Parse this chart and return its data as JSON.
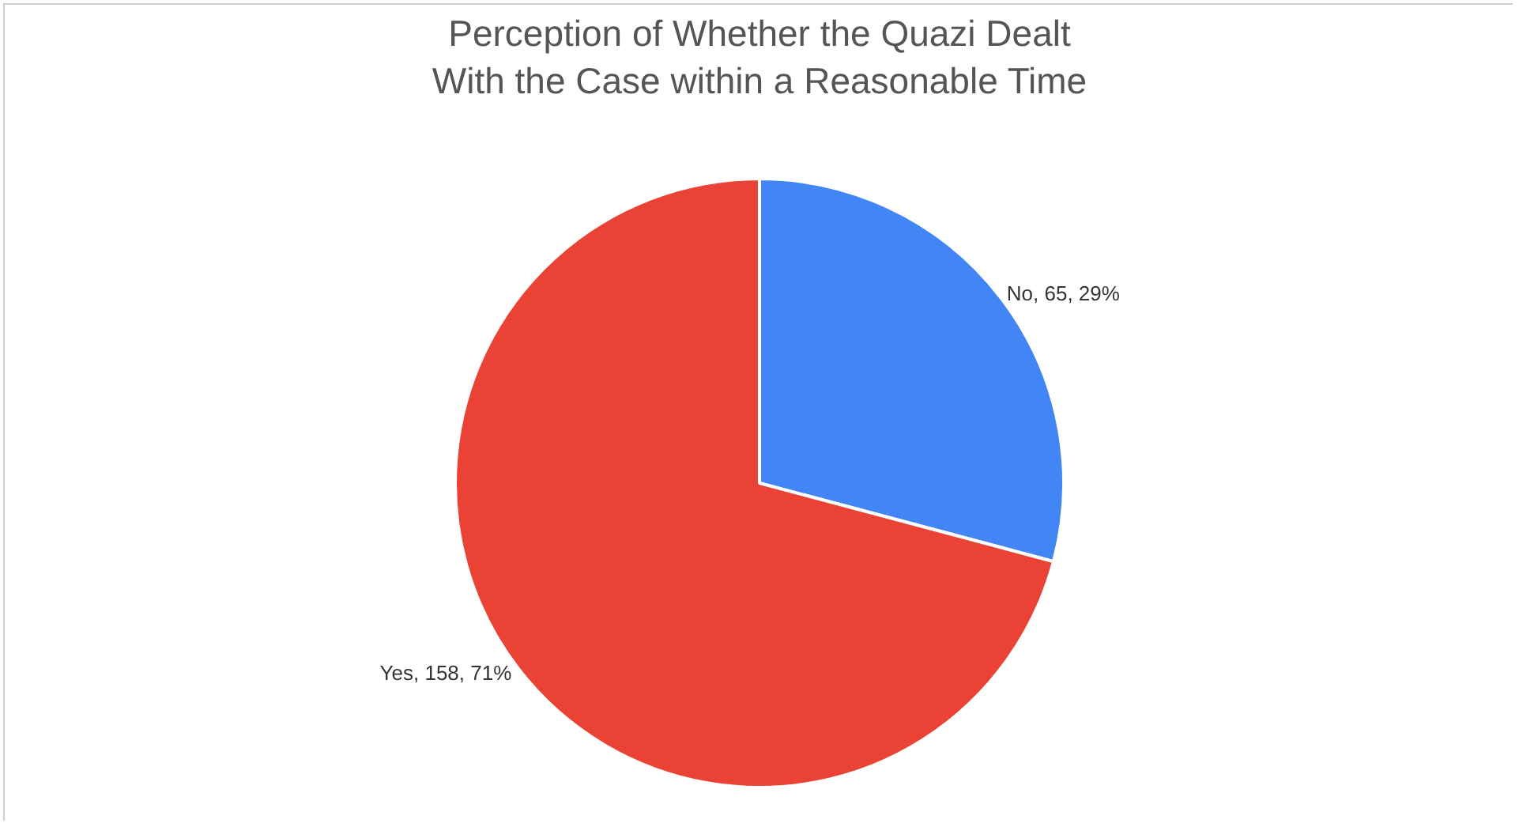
{
  "chart_data": {
    "type": "pie",
    "title": "Perception of Whether the Quazi Dealt With the Case within a Reasonable Time",
    "categories": [
      "No",
      "Yes"
    ],
    "values": [
      65,
      158
    ],
    "colors": [
      "#4285f4",
      "#ea4335"
    ],
    "value_labels": [
      "65, 29%",
      "158, 71%"
    ],
    "legend": false
  }
}
